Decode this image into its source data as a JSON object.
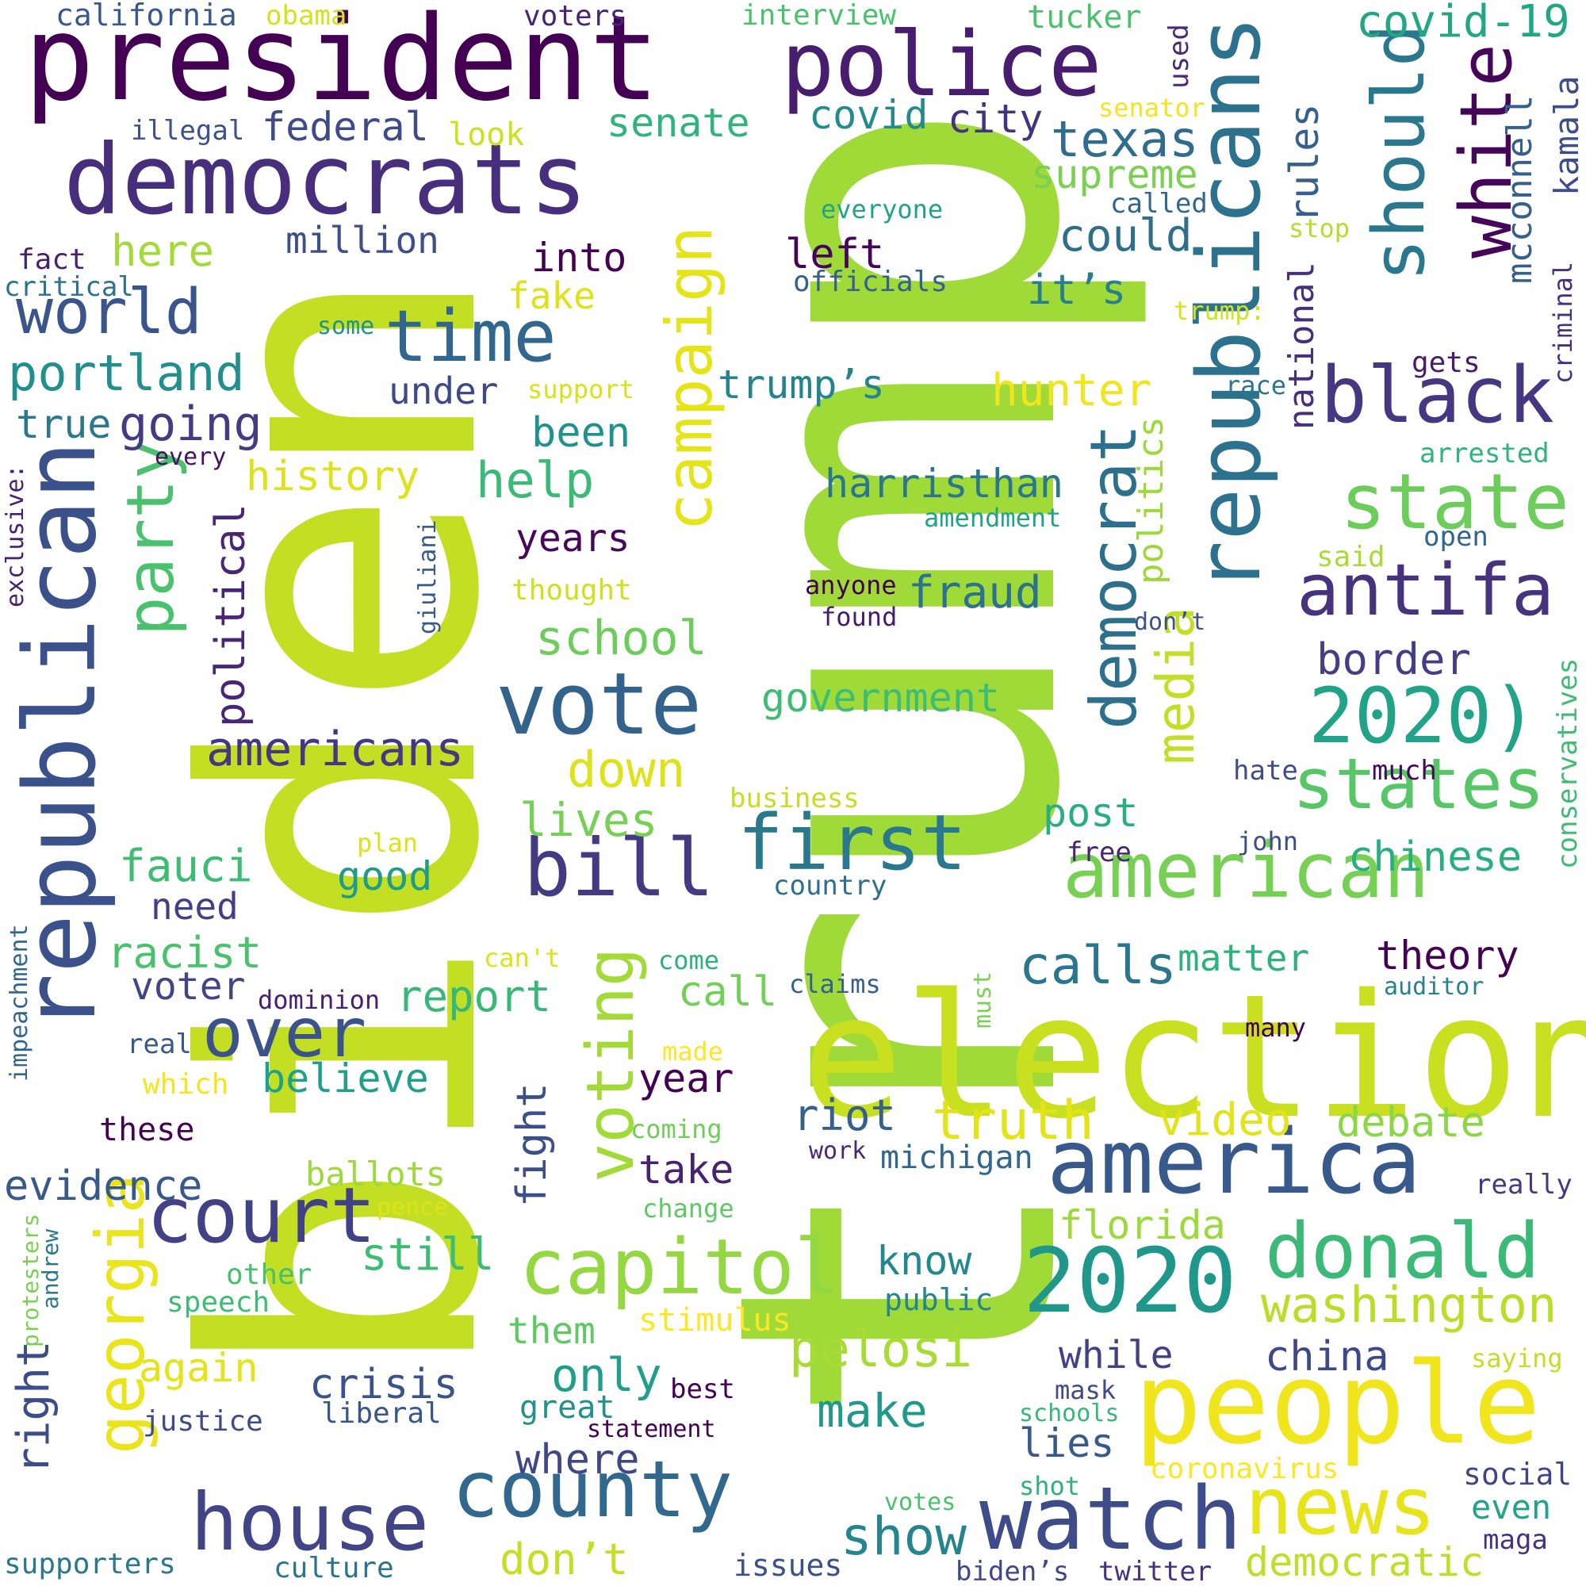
{
  "palette": {
    "background": "#ffffff",
    "scheme": "viridis",
    "colors": [
      "#440154",
      "#482878",
      "#3e4989",
      "#31688e",
      "#26828e",
      "#1f9e89",
      "#35b779",
      "#6ece58",
      "#b5de2b",
      "#fde725"
    ]
  },
  "words": [
    {
      "text": "trump",
      "color": "#a0da39"
    },
    {
      "text": "biden",
      "color": "#c2df23"
    },
    {
      "text": "election",
      "color": "#c8e020"
    },
    {
      "text": "president",
      "color": "#440154"
    },
    {
      "text": "democrats",
      "color": "#472f7d"
    },
    {
      "text": "police",
      "color": "#481c6e"
    },
    {
      "text": "republicans",
      "color": "#2c728e"
    },
    {
      "text": "republican",
      "color": "#3b518b"
    },
    {
      "text": "people",
      "color": "#f1e51d"
    },
    {
      "text": "america",
      "color": "#38598c"
    },
    {
      "text": "watch",
      "color": "#3e4c8a"
    },
    {
      "text": "house",
      "color": "#414487"
    },
    {
      "text": "county",
      "color": "#31688e"
    },
    {
      "text": "news",
      "color": "#e7e419"
    },
    {
      "text": "vote",
      "color": "#33638d"
    },
    {
      "text": "american",
      "color": "#75d054"
    },
    {
      "text": "2020",
      "color": "#1f988b"
    },
    {
      "text": "donald",
      "color": "#3aba76"
    },
    {
      "text": "capitol",
      "color": "#93d741"
    },
    {
      "text": "court",
      "color": "#424086"
    },
    {
      "text": "bill",
      "color": "#443a83"
    },
    {
      "text": "first",
      "color": "#2a788e"
    },
    {
      "text": "georgia",
      "color": "#eae51a"
    },
    {
      "text": "time",
      "color": "#31668e"
    },
    {
      "text": "should",
      "color": "#2a778e"
    },
    {
      "text": "white",
      "color": "#450559"
    },
    {
      "text": "black",
      "color": "#453781"
    },
    {
      "text": "state",
      "color": "#6ccd5a"
    },
    {
      "text": "states",
      "color": "#56c667"
    },
    {
      "text": "2020)",
      "color": "#20a386"
    },
    {
      "text": "antifa",
      "color": "#46327e"
    },
    {
      "text": "campaign",
      "color": "#e5e419"
    },
    {
      "text": "voting",
      "color": "#a2da37"
    },
    {
      "text": "party",
      "color": "#4ac16d"
    },
    {
      "text": "democrat",
      "color": "#2d708e"
    },
    {
      "text": "media",
      "color": "#c0df25"
    },
    {
      "text": "world",
      "color": "#3a548c"
    },
    {
      "text": "portland",
      "color": "#218f8d"
    },
    {
      "text": "over",
      "color": "#3b528b"
    },
    {
      "text": "washington",
      "color": "#bade28"
    },
    {
      "text": "covid-19",
      "color": "#22a785"
    },
    {
      "text": "texas",
      "color": "#2f6c8e"
    },
    {
      "text": "truth",
      "color": "#e2e418"
    },
    {
      "text": "pelosi",
      "color": "#a8db34"
    },
    {
      "text": "show",
      "color": "#25858e"
    },
    {
      "text": "americans",
      "color": "#453882"
    },
    {
      "text": "calls",
      "color": "#2a768e"
    },
    {
      "text": "down",
      "color": "#dde318"
    },
    {
      "text": "lives",
      "color": "#75d054"
    },
    {
      "text": "democratic",
      "color": "#bddf26"
    },
    {
      "text": "government",
      "color": "#3fbc73"
    },
    {
      "text": "chinese",
      "color": "#29af7f"
    },
    {
      "text": "going",
      "color": "#443b84"
    },
    {
      "text": "school",
      "color": "#6ccd5a"
    },
    {
      "text": "help",
      "color": "#3aba76"
    },
    {
      "text": "crisis",
      "color": "#3b528b"
    },
    {
      "text": "make",
      "color": "#1f9a8a"
    },
    {
      "text": "only",
      "color": "#1f9e89"
    },
    {
      "text": "where",
      "color": "#3f4788"
    },
    {
      "text": "political",
      "color": "#482576"
    },
    {
      "text": "hunter",
      "color": "#f1e51d"
    },
    {
      "text": "border",
      "color": "#433e85"
    },
    {
      "text": "fauci",
      "color": "#3fbc73"
    },
    {
      "text": "video",
      "color": "#e2e418"
    },
    {
      "text": "china",
      "color": "#3e4989"
    },
    {
      "text": "again",
      "color": "#e5e419"
    },
    {
      "text": "evidence",
      "color": "#38598c"
    },
    {
      "text": "history",
      "color": "#dde318"
    },
    {
      "text": "voter",
      "color": "#414487"
    },
    {
      "text": "report",
      "color": "#37b878"
    },
    {
      "text": "donʼt",
      "color": "#c2df23"
    },
    {
      "text": "debate",
      "color": "#8bd646"
    },
    {
      "text": "racist",
      "color": "#4ac16d"
    },
    {
      "text": "right",
      "color": "#3d4d8a"
    },
    {
      "text": "senate",
      "color": "#2fb47c"
    },
    {
      "text": "fraud",
      "color": "#2c728e"
    },
    {
      "text": "florida",
      "color": "#9dd93b"
    },
    {
      "text": "while",
      "color": "#424186"
    },
    {
      "text": "still",
      "color": "#3fbc73"
    },
    {
      "text": "believe",
      "color": "#1fa088"
    },
    {
      "text": "trump’s",
      "color": "#25838e"
    },
    {
      "text": "fight",
      "color": "#3c4f8a"
    },
    {
      "text": "riot",
      "color": "#355f8d"
    },
    {
      "text": "here",
      "color": "#a2da37"
    },
    {
      "text": "federal",
      "color": "#3e4a89"
    },
    {
      "text": "could",
      "color": "#2e6f8e"
    },
    {
      "text": "politics",
      "color": "#9dd93b"
    },
    {
      "text": "covid",
      "color": "#238a8d"
    },
    {
      "text": "theory",
      "color": "#440154"
    },
    {
      "text": "matter",
      "color": "#2db27d"
    },
    {
      "text": "harristhan",
      "color": "#2a768e"
    },
    {
      "text": "post",
      "color": "#29af7f"
    },
    {
      "text": "supreme",
      "color": "#7ad151"
    },
    {
      "text": "years",
      "color": "#46085c"
    },
    {
      "text": "been",
      "color": "#20928c"
    },
    {
      "text": "take",
      "color": "#482173"
    },
    {
      "text": "call",
      "color": "#73d056"
    },
    {
      "text": "know",
      "color": "#23888e"
    },
    {
      "text": "year",
      "color": "#440154"
    },
    {
      "text": "million",
      "color": "#3d4e8a"
    },
    {
      "text": "under",
      "color": "#3e4989"
    },
    {
      "text": "into",
      "color": "#440154"
    },
    {
      "text": "left",
      "color": "#450457"
    },
    {
      "text": "city",
      "color": "#46337f"
    },
    {
      "text": "it’s",
      "color": "#277f8e"
    },
    {
      "text": "true",
      "color": "#2a778e"
    },
    {
      "text": "good",
      "color": "#1e9b8a"
    },
    {
      "text": "need",
      "color": "#433e85"
    },
    {
      "text": "them",
      "color": "#5ec962"
    },
    {
      "text": "lies",
      "color": "#38598c"
    },
    {
      "text": "even",
      "color": "#20a386"
    },
    {
      "text": "rules",
      "color": "#355f8d"
    },
    {
      "text": "national",
      "color": "#472f7d"
    },
    {
      "text": "mcconnell",
      "color": "#355f8d"
    },
    {
      "text": "kamala",
      "color": "#3d4d8a"
    },
    {
      "text": "fake",
      "color": "#dde318"
    },
    {
      "text": "ballots",
      "color": "#9dd93b"
    },
    {
      "text": "michigan",
      "color": "#31678e"
    },
    {
      "text": "public",
      "color": "#25858e"
    },
    {
      "text": "stimulus",
      "color": "#fde725"
    },
    {
      "text": "great",
      "color": "#21918c"
    },
    {
      "text": "justice",
      "color": "#3e4a89"
    },
    {
      "text": "liberal",
      "color": "#3a548c"
    },
    {
      "text": "these",
      "color": "#440154"
    },
    {
      "text": "speech",
      "color": "#3fbc73"
    },
    {
      "text": "other",
      "color": "#46c06f"
    },
    {
      "text": "coronavirus",
      "color": "#fde725"
    },
    {
      "text": "social",
      "color": "#414487"
    },
    {
      "text": "supporters",
      "color": "#2a788e"
    },
    {
      "text": "culture",
      "color": "#2c738e"
    },
    {
      "text": "issues",
      "color": "#3c4f8a"
    },
    {
      "text": "biden’s",
      "color": "#3f4788"
    },
    {
      "text": "twitter",
      "color": "#46327e"
    },
    {
      "text": "maga",
      "color": "#46337f"
    },
    {
      "text": "california",
      "color": "#38598c"
    },
    {
      "text": "obama",
      "color": "#d2e21b"
    },
    {
      "text": "voters",
      "color": "#482475"
    },
    {
      "text": "interview",
      "color": "#4ac16d"
    },
    {
      "text": "tucker",
      "color": "#4ac16d"
    },
    {
      "text": "illegal",
      "color": "#3c508b"
    },
    {
      "text": "look",
      "color": "#cae11f"
    },
    {
      "text": "senator",
      "color": "#f4e61e"
    },
    {
      "text": "used",
      "color": "#482878"
    },
    {
      "text": "everyone",
      "color": "#20a386"
    },
    {
      "text": "called",
      "color": "#31668e"
    },
    {
      "text": "stop",
      "color": "#b5de2b"
    },
    {
      "text": "officials",
      "color": "#34618d"
    },
    {
      "text": "fact",
      "color": "#482071"
    },
    {
      "text": "critical",
      "color": "#2c728e"
    },
    {
      "text": "some",
      "color": "#20928c"
    },
    {
      "text": "trump:",
      "color": "#d2e21b"
    },
    {
      "text": "support",
      "color": "#d8e219"
    },
    {
      "text": "gets",
      "color": "#481b6d"
    },
    {
      "text": "criminal",
      "color": "#46307e"
    },
    {
      "text": "race",
      "color": "#2b758e"
    },
    {
      "text": "arrested",
      "color": "#2fb47c"
    },
    {
      "text": "every",
      "color": "#471063"
    },
    {
      "text": "amendment",
      "color": "#20a486"
    },
    {
      "text": "open",
      "color": "#32658e"
    },
    {
      "text": "exclusive:",
      "color": "#481f70"
    },
    {
      "text": "giuliani",
      "color": "#38598c"
    },
    {
      "text": "thought",
      "color": "#cde11d"
    },
    {
      "text": "anyone",
      "color": "#440154"
    },
    {
      "text": "found",
      "color": "#481a6c"
    },
    {
      "text": "said",
      "color": "#a8db34"
    },
    {
      "text": "don’t",
      "color": "#3b528b"
    },
    {
      "text": "conservatives",
      "color": "#3fbc73"
    },
    {
      "text": "hate",
      "color": "#3e4c8a"
    },
    {
      "text": "much",
      "color": "#46085c"
    },
    {
      "text": "business",
      "color": "#c2df23"
    },
    {
      "text": "plan",
      "color": "#dde318"
    },
    {
      "text": "john",
      "color": "#3d4d8a"
    },
    {
      "text": "free",
      "color": "#482475"
    },
    {
      "text": "country",
      "color": "#2e6e8e"
    },
    {
      "text": "impeachment",
      "color": "#31668e"
    },
    {
      "text": "can't",
      "color": "#dde318"
    },
    {
      "text": "come",
      "color": "#2db27d"
    },
    {
      "text": "dominion",
      "color": "#481f70"
    },
    {
      "text": "claims",
      "color": "#355f8d"
    },
    {
      "text": "auditor",
      "color": "#26828e"
    },
    {
      "text": "real",
      "color": "#38598c"
    },
    {
      "text": "must",
      "color": "#7ad151"
    },
    {
      "text": "made",
      "color": "#fde725"
    },
    {
      "text": "many",
      "color": "#440154"
    },
    {
      "text": "which",
      "color": "#f4e61e"
    },
    {
      "text": "coming",
      "color": "#6ece58"
    },
    {
      "text": "work",
      "color": "#482878"
    },
    {
      "text": "pence",
      "color": "#dde318"
    },
    {
      "text": "change",
      "color": "#5ec962"
    },
    {
      "text": "really",
      "color": "#443983"
    },
    {
      "text": "protesters",
      "color": "#7ad151"
    },
    {
      "text": "andrew",
      "color": "#2a788e"
    },
    {
      "text": "best",
      "color": "#440154"
    },
    {
      "text": "mask",
      "color": "#3e4a89"
    },
    {
      "text": "schools",
      "color": "#35b779"
    },
    {
      "text": "saying",
      "color": "#c0df25"
    },
    {
      "text": "statement",
      "color": "#440154"
    },
    {
      "text": "shot",
      "color": "#2db27d"
    },
    {
      "text": "votes",
      "color": "#4ac16d"
    }
  ]
}
